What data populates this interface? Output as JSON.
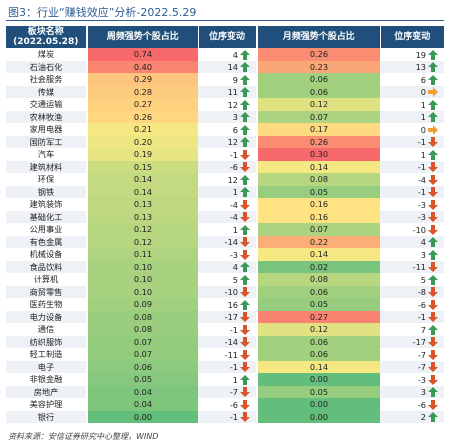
{
  "caption": "图3：行业“赚钱效应”分析-2022.5.29",
  "headers": {
    "sector": "板块名称",
    "date": "(2022.05.28)",
    "weekly": "周频强势个股占比",
    "weekly_change": "位序变动",
    "monthly": "月频强势个股占比",
    "monthly_change": "位序变动"
  },
  "source": "资料来源：安信证券研究中心整理，WIND",
  "colors": {
    "header_bg": "#1f4f7a",
    "arrow_up": "#3a9a55",
    "arrow_down": "#d9542b",
    "arrow_flat": "#f0a030"
  },
  "rows": [
    {
      "name": "煤炭",
      "w": "0.74",
      "wc": "4",
      "wd": "up",
      "m": "0.26",
      "mc": "19",
      "md": "up"
    },
    {
      "name": "石油石化",
      "w": "0.40",
      "wc": "14",
      "wd": "up",
      "m": "0.23",
      "mc": "13",
      "md": "up"
    },
    {
      "name": "社会服务",
      "w": "0.29",
      "wc": "9",
      "wd": "up",
      "m": "0.06",
      "mc": "6",
      "md": "up"
    },
    {
      "name": "传媒",
      "w": "0.28",
      "wc": "11",
      "wd": "up",
      "m": "0.06",
      "mc": "0",
      "md": "flat"
    },
    {
      "name": "交通运输",
      "w": "0.27",
      "wc": "12",
      "wd": "up",
      "m": "0.12",
      "mc": "1",
      "md": "up"
    },
    {
      "name": "农林牧渔",
      "w": "0.26",
      "wc": "3",
      "wd": "up",
      "m": "0.07",
      "mc": "1",
      "md": "up"
    },
    {
      "name": "家用电器",
      "w": "0.21",
      "wc": "6",
      "wd": "up",
      "m": "0.17",
      "mc": "0",
      "md": "flat"
    },
    {
      "name": "国防军工",
      "w": "0.20",
      "wc": "12",
      "wd": "up",
      "m": "0.26",
      "mc": "-1",
      "md": "down"
    },
    {
      "name": "汽车",
      "w": "0.19",
      "wc": "-1",
      "wd": "down",
      "m": "0.30",
      "mc": "1",
      "md": "up"
    },
    {
      "name": "建筑材料",
      "w": "0.15",
      "wc": "-6",
      "wd": "down",
      "m": "0.14",
      "mc": "-1",
      "md": "down"
    },
    {
      "name": "环保",
      "w": "0.14",
      "wc": "12",
      "wd": "up",
      "m": "0.08",
      "mc": "-4",
      "md": "down"
    },
    {
      "name": "钢铁",
      "w": "0.14",
      "wc": "1",
      "wd": "up",
      "m": "0.05",
      "mc": "-1",
      "md": "down"
    },
    {
      "name": "建筑装饰",
      "w": "0.13",
      "wc": "-4",
      "wd": "down",
      "m": "0.16",
      "mc": "-3",
      "md": "down"
    },
    {
      "name": "基础化工",
      "w": "0.13",
      "wc": "-4",
      "wd": "down",
      "m": "0.16",
      "mc": "-3",
      "md": "down"
    },
    {
      "name": "公用事业",
      "w": "0.12",
      "wc": "1",
      "wd": "up",
      "m": "0.07",
      "mc": "-10",
      "md": "down"
    },
    {
      "name": "有色金属",
      "w": "0.12",
      "wc": "-14",
      "wd": "down",
      "m": "0.22",
      "mc": "4",
      "md": "up"
    },
    {
      "name": "机械设备",
      "w": "0.11",
      "wc": "-3",
      "wd": "down",
      "m": "0.14",
      "mc": "3",
      "md": "up"
    },
    {
      "name": "食品饮料",
      "w": "0.10",
      "wc": "4",
      "wd": "up",
      "m": "0.02",
      "mc": "-11",
      "md": "down"
    },
    {
      "name": "计算机",
      "w": "0.10",
      "wc": "5",
      "wd": "up",
      "m": "0.08",
      "mc": "5",
      "md": "up"
    },
    {
      "name": "商贸零售",
      "w": "0.10",
      "wc": "-10",
      "wd": "down",
      "m": "0.06",
      "mc": "-8",
      "md": "down"
    },
    {
      "name": "医药生物",
      "w": "0.09",
      "wc": "16",
      "wd": "up",
      "m": "0.05",
      "mc": "-6",
      "md": "down"
    },
    {
      "name": "电力设备",
      "w": "0.08",
      "wc": "-17",
      "wd": "down",
      "m": "0.27",
      "mc": "-1",
      "md": "down"
    },
    {
      "name": "通信",
      "w": "0.08",
      "wc": "-1",
      "wd": "down",
      "m": "0.12",
      "mc": "7",
      "md": "up"
    },
    {
      "name": "纺织服饰",
      "w": "0.07",
      "wc": "-14",
      "wd": "down",
      "m": "0.06",
      "mc": "-17",
      "md": "down"
    },
    {
      "name": "轻工制造",
      "w": "0.07",
      "wc": "-11",
      "wd": "down",
      "m": "0.06",
      "mc": "-7",
      "md": "down"
    },
    {
      "name": "电子",
      "w": "0.06",
      "wc": "-1",
      "wd": "down",
      "m": "0.14",
      "mc": "-7",
      "md": "down"
    },
    {
      "name": "非银金融",
      "w": "0.05",
      "wc": "1",
      "wd": "up",
      "m": "0.00",
      "mc": "-3",
      "md": "down"
    },
    {
      "name": "房地产",
      "w": "0.04",
      "wc": "-7",
      "wd": "down",
      "m": "0.05",
      "mc": "3",
      "md": "up"
    },
    {
      "name": "美容护理",
      "w": "0.04",
      "wc": "-6",
      "wd": "down",
      "m": "0.00",
      "mc": "-6",
      "md": "down"
    },
    {
      "name": "银行",
      "w": "0.00",
      "wc": "-1",
      "wd": "down",
      "m": "0.00",
      "mc": "2",
      "md": "up"
    }
  ]
}
